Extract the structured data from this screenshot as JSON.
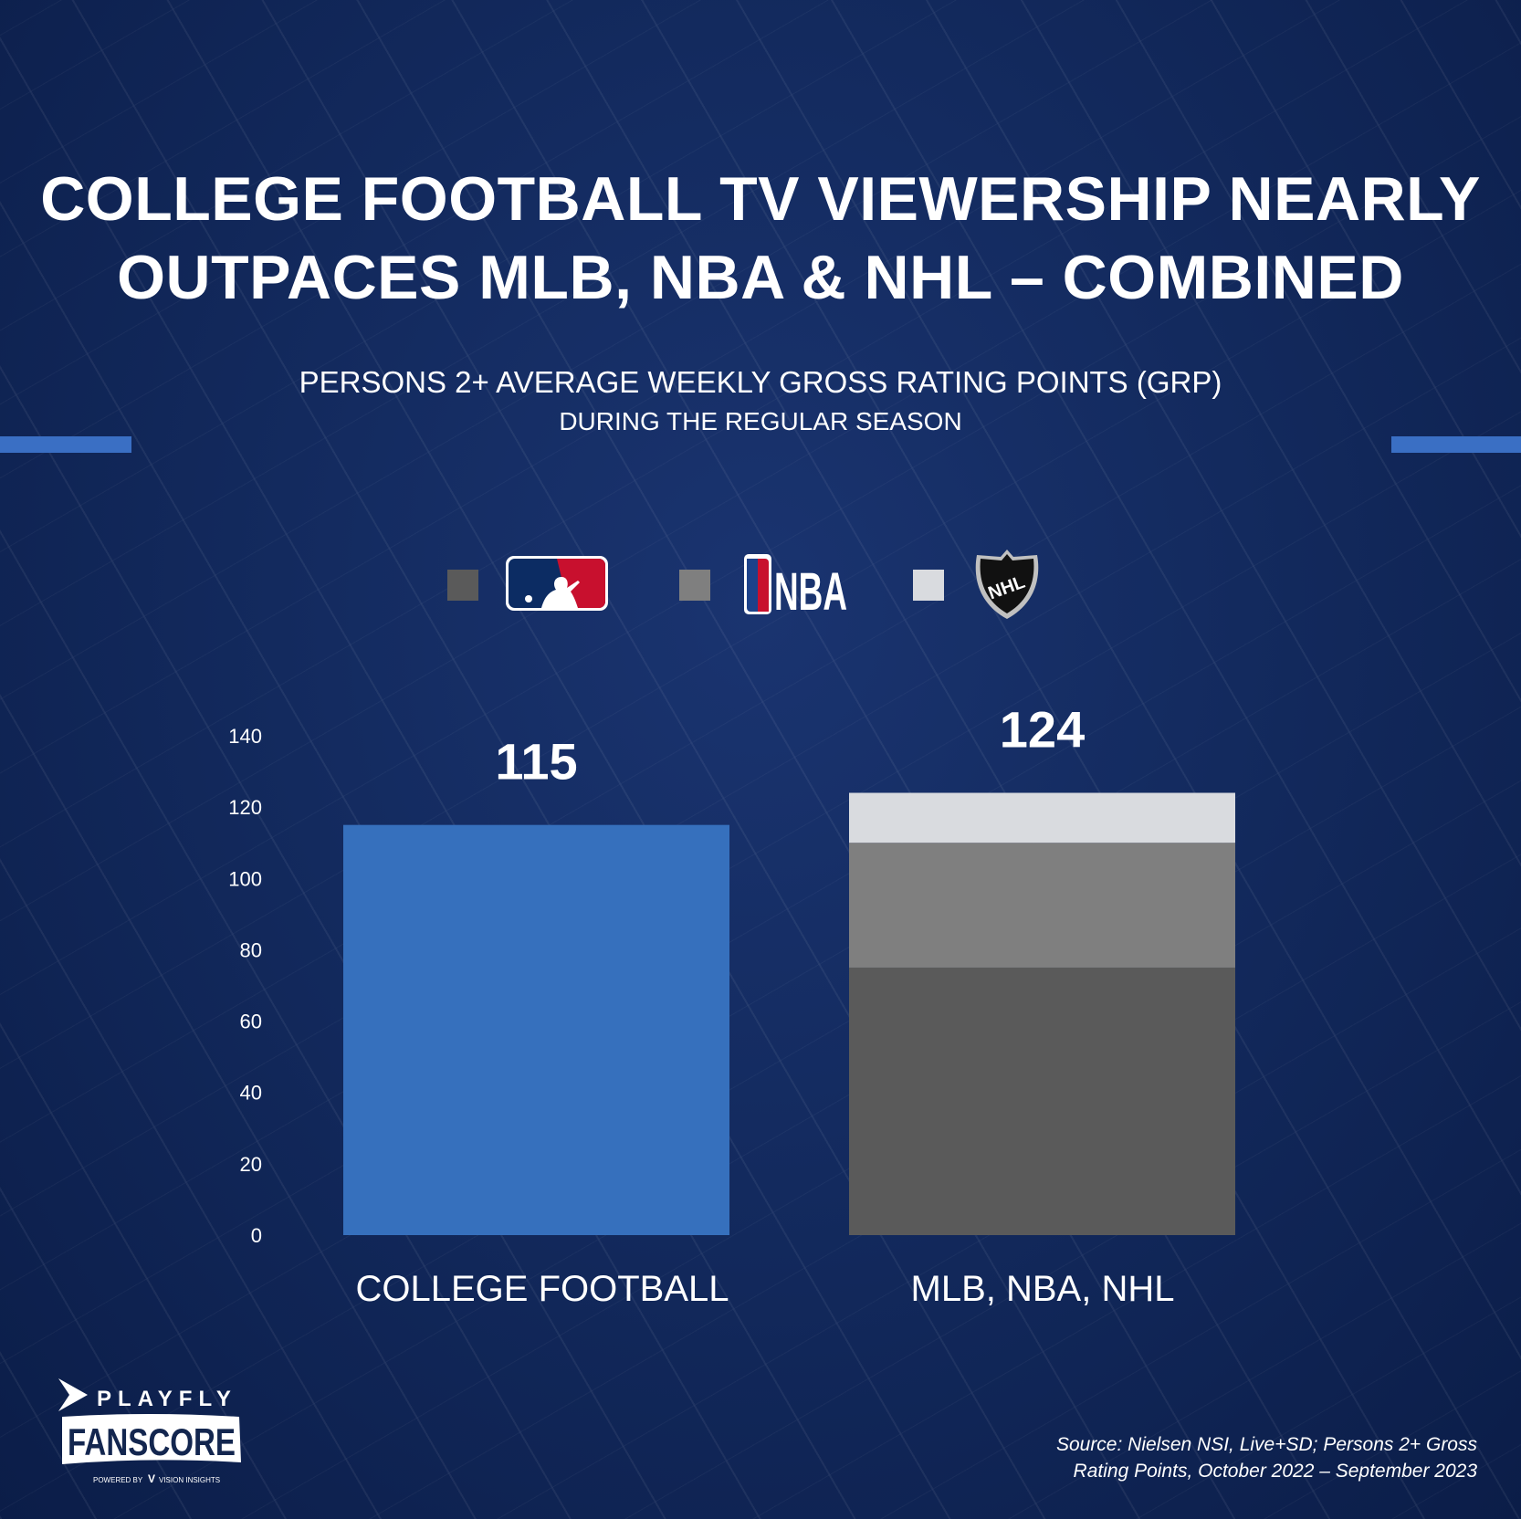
{
  "title": {
    "line1": "COLLEGE FOOTBALL TV VIEWERSHIP NEARLY",
    "line2": "OUTPACES  MLB, NBA & NHL – COMBINED"
  },
  "subtitle": {
    "line1": "PERSONS 2+ AVERAGE WEEKLY GROSS RATING POINTS (GRP)",
    "line2": "DURING THE REGULAR SEASON"
  },
  "legend": [
    {
      "name": "MLB",
      "color": "#5a5a5a",
      "logo_text": "MLB"
    },
    {
      "name": "NBA",
      "color": "#7f7f7f",
      "logo_text": "NBA"
    },
    {
      "name": "NHL",
      "color": "#d9dbdf",
      "logo_text": "NHL"
    }
  ],
  "chart_data": {
    "type": "bar",
    "stacked": true,
    "categories": [
      "COLLEGE FOOTBALL",
      "MLB, NBA, NHL"
    ],
    "series": [
      {
        "name": "College Football",
        "color": "#3670bd",
        "values": [
          115,
          0
        ]
      },
      {
        "name": "MLB",
        "color": "#5a5a5a",
        "values": [
          0,
          75
        ]
      },
      {
        "name": "NBA",
        "color": "#7f7f7f",
        "values": [
          0,
          35
        ]
      },
      {
        "name": "NHL",
        "color": "#d9dbdf",
        "values": [
          0,
          14
        ]
      }
    ],
    "totals": [
      "115",
      "124"
    ],
    "ylim": [
      0,
      140
    ],
    "yticks": [
      "0",
      "20",
      "40",
      "60",
      "80",
      "100",
      "120",
      "140"
    ],
    "grid": false
  },
  "source": {
    "line1": "Source: Nielsen NSI, Live+SD; Persons 2+ Gross",
    "line2": "Rating Points, October 2022 – September 2023"
  },
  "brand": {
    "playfly": "PLAYFLY",
    "fanscore": "FANSCORE",
    "powered": "POWERED BY",
    "vision": "VISION INSIGHTS"
  }
}
